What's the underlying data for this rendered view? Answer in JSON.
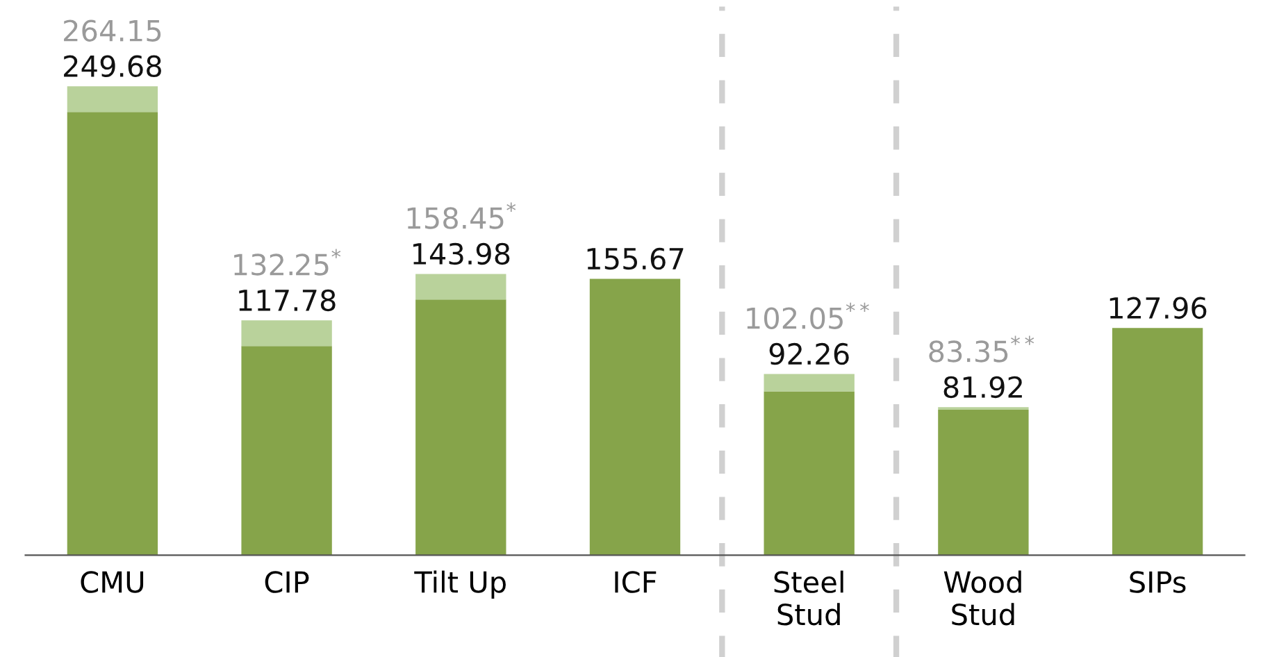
{
  "chart_data": {
    "type": "bar",
    "stacked": true,
    "categories": [
      "CMU",
      "CIP",
      "Tilt Up",
      "ICF",
      "Steel\nStud",
      "Wood\nStud",
      "SIPs"
    ],
    "series": [
      {
        "color": "#86a44a",
        "values": [
          249.68,
          117.78,
          143.98,
          155.67,
          92.26,
          81.92,
          127.96
        ],
        "value_labels": [
          "249.68",
          "117.78",
          "143.98",
          "155.67",
          "92.26",
          "81.92",
          "127.96"
        ]
      },
      {
        "color": "#b9d29b",
        "values": [
          14.47,
          14.47,
          14.47,
          null,
          9.79,
          1.43,
          null
        ]
      }
    ],
    "totals": [
      "264.15",
      "132.25$^{*}$",
      "158.45$^{*}$",
      null,
      "102.05$^{**}$",
      "83.35$^{**}$",
      null
    ],
    "grid": false,
    "legend": false
  }
}
